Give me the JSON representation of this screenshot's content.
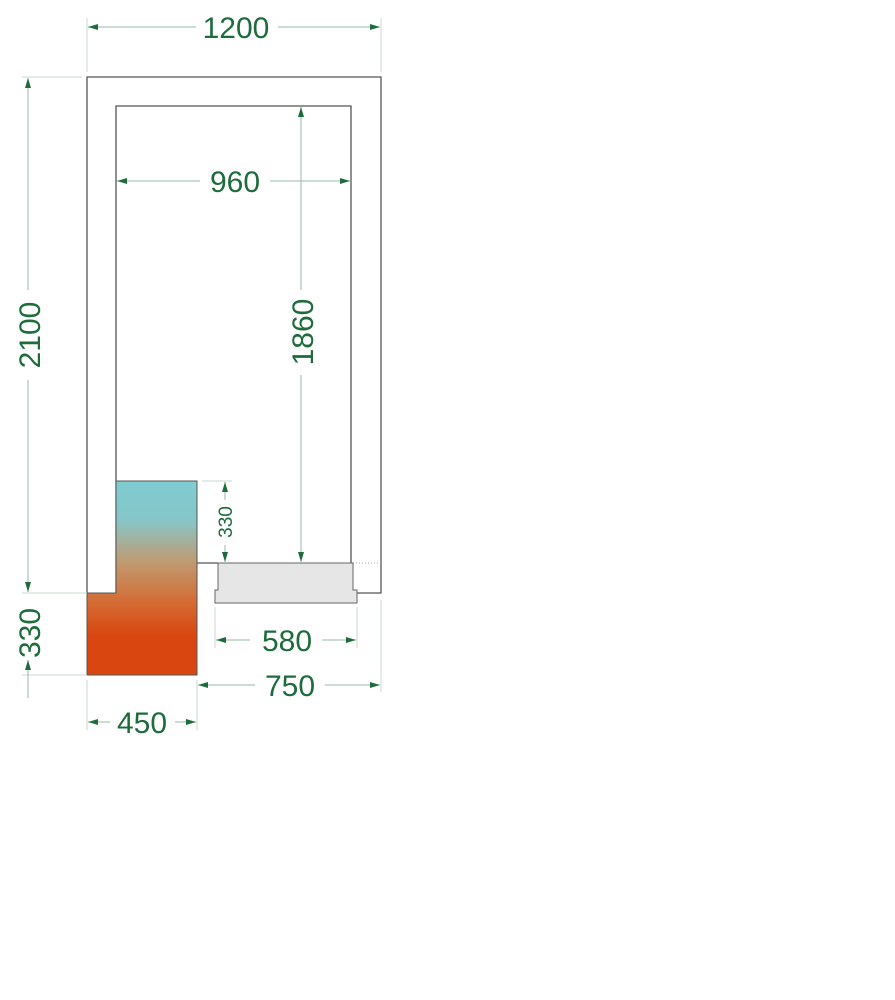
{
  "dimensions": {
    "outer_width": "1200",
    "inner_width": "960",
    "outer_height": "2100",
    "inner_height": "1860",
    "unit_upper_height": "330",
    "unit_lower_height": "330",
    "door_width": "580",
    "door_offset": "750",
    "unit_width": "450"
  },
  "colors": {
    "dimension_text": "#1e6b3c",
    "unit_top": "#7fcbd3",
    "unit_bottom": "#d9460f",
    "door_fill": "#e6e6e6"
  }
}
